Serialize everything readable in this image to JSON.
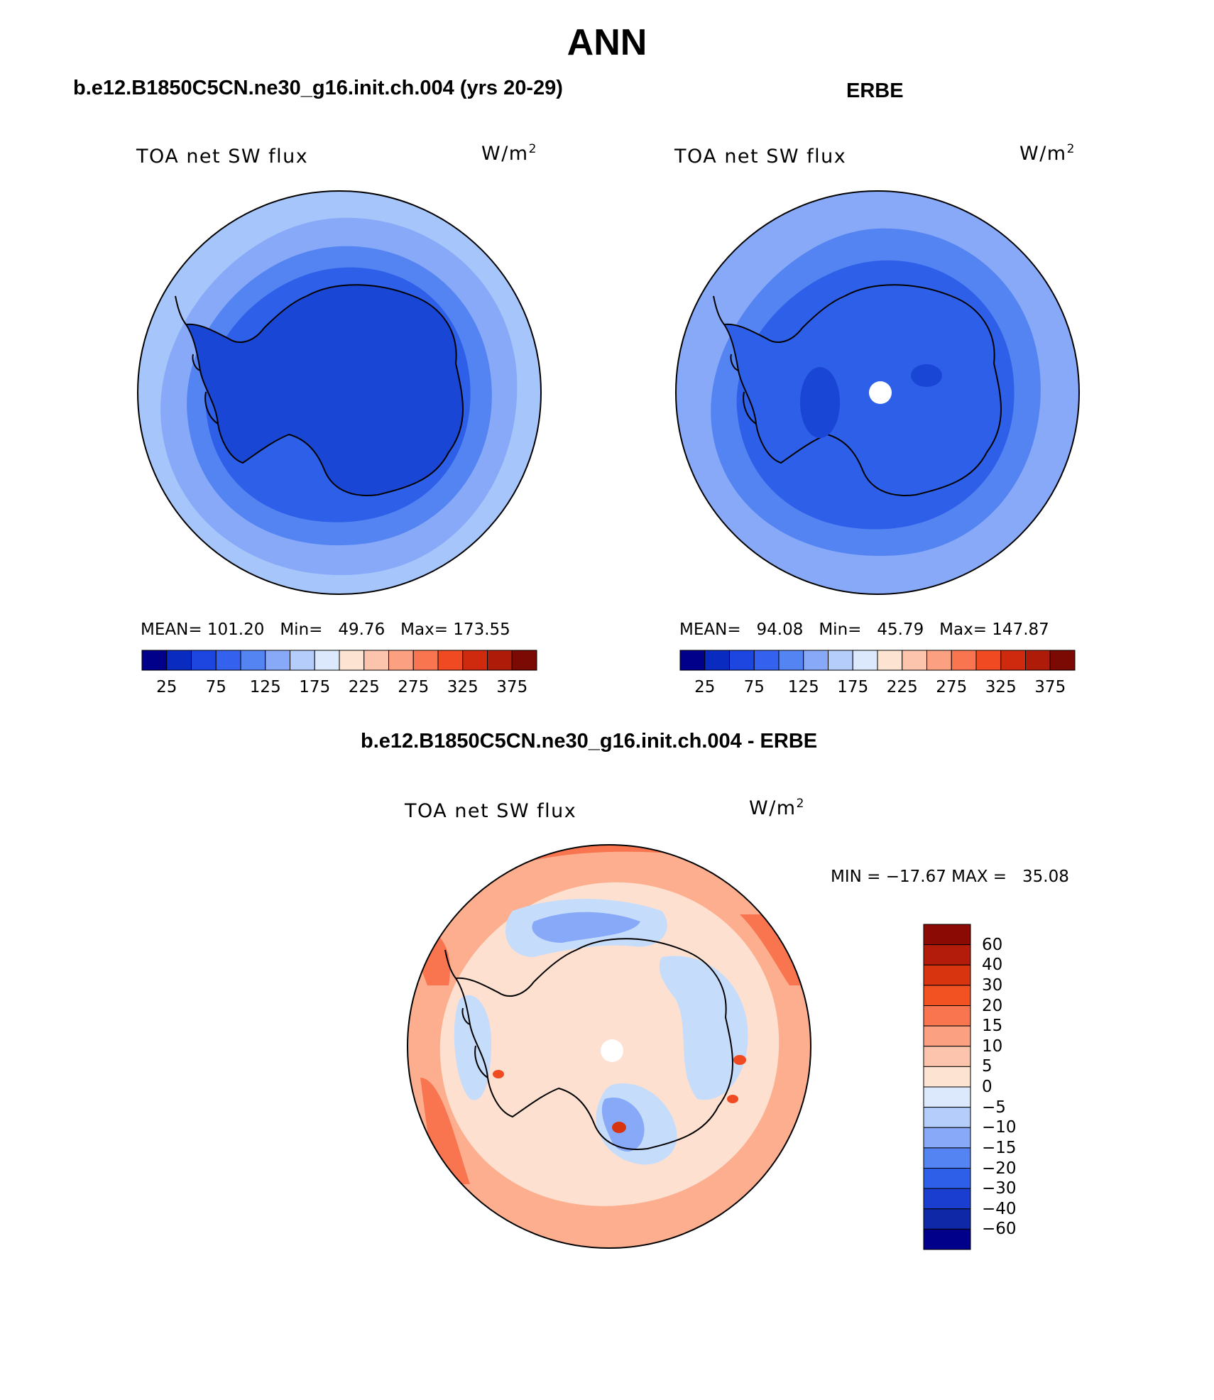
{
  "page": {
    "title": "ANN"
  },
  "panel_left": {
    "case_title": "b.e12.B1850C5CN.ne30_g16.init.ch.004 (yrs 20-29)",
    "variable": "TOA net SW flux",
    "units": "W/m",
    "units_sup": "2",
    "stats": {
      "mean_label": "MEAN=",
      "mean": "101.20",
      "min_label": "Min=",
      "min": "49.76",
      "max_label": "Max=",
      "max": "173.55"
    }
  },
  "panel_right": {
    "case_title": "ERBE",
    "variable": "TOA net SW flux",
    "units": "W/m",
    "units_sup": "2",
    "stats": {
      "mean_label": "MEAN=",
      "mean": "94.08",
      "min_label": "Min=",
      "min": "45.79",
      "max_label": "Max=",
      "max": "147.87"
    }
  },
  "panel_diff": {
    "case_title": "b.e12.B1850C5CN.ne30_g16.init.ch.004 - ERBE",
    "variable": "TOA net SW flux",
    "units": "W/m",
    "units_sup": "2",
    "minmax": "MIN = −17.67 MAX =   35.08"
  },
  "colors": {
    "ocean_outer": "#a6c5fb",
    "ring": "#87a9f8",
    "mid": "#5484f2",
    "inner": "#2e5fe8",
    "antarctica": "#1a46d6",
    "diff_ocean": "#fdae8e",
    "diff_ice": "#fde0d0",
    "diff_neg": "#c6dcfb",
    "coast": "#000000"
  },
  "chart_data": [
    {
      "type": "map",
      "title": "TOA net SW flux",
      "subtitle": "b.e12.B1850C5CN.ne30_g16.init.ch.004 (yrs 20-29)",
      "units": "W/m2",
      "projection": "south polar stereographic",
      "mean": 101.2,
      "min": 49.76,
      "max": 173.55,
      "colorbar": {
        "orientation": "horizontal",
        "ticks": [
          "25",
          "75",
          "125",
          "175",
          "225",
          "275",
          "325",
          "375"
        ],
        "colors": [
          "#00008b",
          "#0a2bc0",
          "#1d46e0",
          "#3461ee",
          "#5484f2",
          "#87a9f8",
          "#b4cdfb",
          "#dce9fd",
          "#fde3d2",
          "#fcc4ac",
          "#fba080",
          "#f87550",
          "#ef4a22",
          "#cf2a0e",
          "#ae1b08",
          "#7a0a03"
        ]
      }
    },
    {
      "type": "map",
      "title": "TOA net SW flux",
      "subtitle": "ERBE",
      "units": "W/m2",
      "projection": "south polar stereographic",
      "mean": 94.08,
      "min": 45.79,
      "max": 147.87,
      "colorbar": {
        "orientation": "horizontal",
        "ticks": [
          "25",
          "75",
          "125",
          "175",
          "225",
          "275",
          "325",
          "375"
        ],
        "colors": [
          "#00008b",
          "#0a2bc0",
          "#1d46e0",
          "#3461ee",
          "#5484f2",
          "#87a9f8",
          "#b4cdfb",
          "#dce9fd",
          "#fde3d2",
          "#fcc4ac",
          "#fba080",
          "#f87550",
          "#ef4a22",
          "#cf2a0e",
          "#ae1b08",
          "#7a0a03"
        ]
      }
    },
    {
      "type": "map",
      "title": "TOA net SW flux",
      "subtitle": "b.e12.B1850C5CN.ne30_g16.init.ch.004 - ERBE",
      "units": "W/m2",
      "projection": "south polar stereographic",
      "min": -17.67,
      "max": 35.08,
      "colorbar": {
        "orientation": "vertical",
        "ticks": [
          "60",
          "40",
          "30",
          "20",
          "15",
          "10",
          "5",
          "0",
          "−5",
          "−10",
          "−15",
          "−20",
          "−30",
          "−40",
          "−60"
        ],
        "colors": [
          "#8b0a04",
          "#b31b0a",
          "#d93410",
          "#f25222",
          "#f87550",
          "#fba080",
          "#fcc4ac",
          "#fde3d2",
          "#dce9fd",
          "#b4cdfb",
          "#87a9f8",
          "#5484f2",
          "#2e5fe8",
          "#1a3fd0",
          "#0e28a8",
          "#00008b"
        ]
      }
    }
  ]
}
